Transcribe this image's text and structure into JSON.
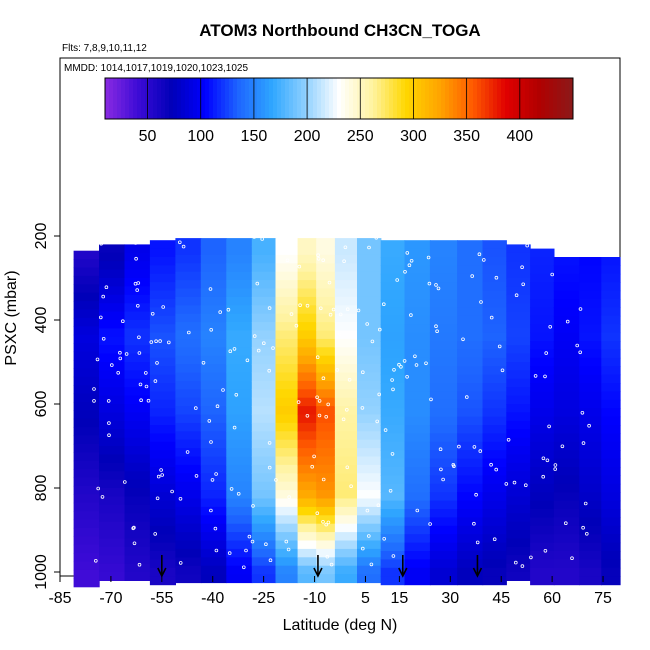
{
  "chart_data": {
    "type": "heatmap",
    "title": "ATOM3 Northbound CH3CN_TOGA",
    "flights_label": "Flts: 7,8,9,10,11,12",
    "dates_label": "MMDD: 1014,1017,1019,1020,1023,1025",
    "xlabel": "Latitude (deg N)",
    "ylabel": "PSXC (mbar)",
    "x_ticks": [
      "-85",
      "-70",
      "-55",
      "-40",
      "-25",
      "-10",
      "5",
      "15",
      "30",
      "45",
      "60",
      "75"
    ],
    "x_tick_values": [
      -85,
      -70,
      -55,
      -40,
      -25,
      -10,
      5,
      15,
      30,
      45,
      60,
      75
    ],
    "y_ticks": [
      "200",
      "400",
      "600",
      "800",
      "1000"
    ],
    "y_tick_values": [
      200,
      400,
      600,
      800,
      1000
    ],
    "xlim": [
      -85,
      80
    ],
    "ylim": [
      1000,
      0
    ],
    "colorbar": {
      "ticks": [
        "50",
        "100",
        "150",
        "200",
        "250",
        "300",
        "350",
        "400"
      ],
      "tick_values": [
        50,
        100,
        150,
        200,
        250,
        300,
        350,
        400
      ],
      "range": [
        10,
        450
      ],
      "colors": [
        "#8a2be2",
        "#3c0bd6",
        "#0000b8",
        "#0000ff",
        "#1e66ff",
        "#2fa6ff",
        "#8fd0ff",
        "#ffffff",
        "#fff3a0",
        "#ffd700",
        "#ffa500",
        "#ff5a00",
        "#e00000",
        "#b00000",
        "#8b1a1a"
      ]
    },
    "sounding_markers_lat": [
      -55,
      -9,
      16,
      38
    ],
    "profiles": [
      {
        "lat": -77,
        "top": 215,
        "values": [
          {
            "p": 220,
            "v": 55
          },
          {
            "p": 420,
            "v": 90
          },
          {
            "p": 600,
            "v": 75
          },
          {
            "p": 800,
            "v": 55
          },
          {
            "p": 980,
            "v": 40
          }
        ]
      },
      {
        "lat": -70,
        "top": 200,
        "values": [
          {
            "p": 220,
            "v": 70
          },
          {
            "p": 420,
            "v": 110
          },
          {
            "p": 600,
            "v": 90
          },
          {
            "p": 800,
            "v": 60
          },
          {
            "p": 980,
            "v": 45
          }
        ]
      },
      {
        "lat": -62,
        "top": 200,
        "values": [
          {
            "p": 220,
            "v": 95
          },
          {
            "p": 420,
            "v": 120
          },
          {
            "p": 600,
            "v": 100
          },
          {
            "p": 800,
            "v": 70
          },
          {
            "p": 980,
            "v": 55
          }
        ]
      },
      {
        "lat": -55,
        "top": 190,
        "values": [
          {
            "p": 220,
            "v": 110
          },
          {
            "p": 420,
            "v": 130
          },
          {
            "p": 600,
            "v": 115
          },
          {
            "p": 800,
            "v": 85
          },
          {
            "p": 980,
            "v": 60
          }
        ]
      },
      {
        "lat": -47,
        "top": 185,
        "values": [
          {
            "p": 220,
            "v": 120
          },
          {
            "p": 420,
            "v": 140
          },
          {
            "p": 600,
            "v": 125
          },
          {
            "p": 800,
            "v": 95
          },
          {
            "p": 980,
            "v": 65
          }
        ]
      },
      {
        "lat": -40,
        "top": 185,
        "values": [
          {
            "p": 220,
            "v": 135
          },
          {
            "p": 420,
            "v": 150
          },
          {
            "p": 600,
            "v": 135
          },
          {
            "p": 800,
            "v": 115
          },
          {
            "p": 980,
            "v": 75
          }
        ]
      },
      {
        "lat": -32,
        "top": 185,
        "values": [
          {
            "p": 220,
            "v": 150
          },
          {
            "p": 420,
            "v": 170
          },
          {
            "p": 600,
            "v": 165
          },
          {
            "p": 800,
            "v": 150
          },
          {
            "p": 980,
            "v": 100
          }
        ]
      },
      {
        "lat": -25,
        "top": 185,
        "values": [
          {
            "p": 220,
            "v": 175
          },
          {
            "p": 420,
            "v": 200
          },
          {
            "p": 600,
            "v": 210
          },
          {
            "p": 800,
            "v": 190
          },
          {
            "p": 980,
            "v": 120
          }
        ]
      },
      {
        "lat": -18,
        "top": 185,
        "values": [
          {
            "p": 220,
            "v": 230
          },
          {
            "p": 420,
            "v": 270
          },
          {
            "p": 600,
            "v": 300
          },
          {
            "p": 800,
            "v": 240
          },
          {
            "p": 980,
            "v": 150
          }
        ]
      },
      {
        "lat": -12,
        "top": 185,
        "values": [
          {
            "p": 220,
            "v": 250
          },
          {
            "p": 420,
            "v": 300
          },
          {
            "p": 600,
            "v": 380
          },
          {
            "p": 800,
            "v": 320
          },
          {
            "p": 980,
            "v": 180
          }
        ]
      },
      {
        "lat": -7,
        "top": 185,
        "values": [
          {
            "p": 220,
            "v": 240
          },
          {
            "p": 420,
            "v": 270
          },
          {
            "p": 600,
            "v": 360
          },
          {
            "p": 800,
            "v": 330
          },
          {
            "p": 980,
            "v": 190
          }
        ]
      },
      {
        "lat": -1,
        "top": 185,
        "values": [
          {
            "p": 220,
            "v": 215
          },
          {
            "p": 420,
            "v": 230
          },
          {
            "p": 600,
            "v": 260
          },
          {
            "p": 800,
            "v": 270
          },
          {
            "p": 980,
            "v": 170
          }
        ]
      },
      {
        "lat": 6,
        "top": 185,
        "values": [
          {
            "p": 220,
            "v": 190
          },
          {
            "p": 420,
            "v": 190
          },
          {
            "p": 600,
            "v": 200
          },
          {
            "p": 800,
            "v": 230
          },
          {
            "p": 980,
            "v": 140
          }
        ]
      },
      {
        "lat": 13,
        "top": 190,
        "values": [
          {
            "p": 220,
            "v": 170
          },
          {
            "p": 420,
            "v": 165
          },
          {
            "p": 600,
            "v": 170
          },
          {
            "p": 800,
            "v": 180
          },
          {
            "p": 980,
            "v": 120
          }
        ]
      },
      {
        "lat": 20,
        "top": 190,
        "values": [
          {
            "p": 220,
            "v": 160
          },
          {
            "p": 420,
            "v": 155
          },
          {
            "p": 600,
            "v": 155
          },
          {
            "p": 800,
            "v": 140
          },
          {
            "p": 980,
            "v": 100
          }
        ]
      },
      {
        "lat": 28,
        "top": 190,
        "values": [
          {
            "p": 220,
            "v": 150
          },
          {
            "p": 420,
            "v": 145
          },
          {
            "p": 600,
            "v": 140
          },
          {
            "p": 800,
            "v": 120
          },
          {
            "p": 980,
            "v": 85
          }
        ]
      },
      {
        "lat": 36,
        "top": 190,
        "values": [
          {
            "p": 220,
            "v": 140
          },
          {
            "p": 420,
            "v": 140
          },
          {
            "p": 600,
            "v": 130
          },
          {
            "p": 800,
            "v": 105
          },
          {
            "p": 980,
            "v": 75
          }
        ]
      },
      {
        "lat": 43,
        "top": 190,
        "values": [
          {
            "p": 220,
            "v": 130
          },
          {
            "p": 420,
            "v": 135
          },
          {
            "p": 600,
            "v": 120
          },
          {
            "p": 800,
            "v": 95
          },
          {
            "p": 980,
            "v": 70
          }
        ]
      },
      {
        "lat": 50,
        "top": 200,
        "values": [
          {
            "p": 220,
            "v": 120
          },
          {
            "p": 420,
            "v": 125
          },
          {
            "p": 600,
            "v": 110
          },
          {
            "p": 800,
            "v": 85
          },
          {
            "p": 980,
            "v": 65
          }
        ]
      },
      {
        "lat": 57,
        "top": 210,
        "values": [
          {
            "p": 220,
            "v": 115
          },
          {
            "p": 420,
            "v": 110
          },
          {
            "p": 600,
            "v": 95
          },
          {
            "p": 800,
            "v": 75
          },
          {
            "p": 980,
            "v": 55
          }
        ]
      },
      {
        "lat": 64,
        "top": 230,
        "values": [
          {
            "p": 220,
            "v": 110
          },
          {
            "p": 420,
            "v": 100
          },
          {
            "p": 600,
            "v": 90
          },
          {
            "p": 800,
            "v": 70
          },
          {
            "p": 980,
            "v": 55
          }
        ]
      },
      {
        "lat": 72,
        "top": 230,
        "values": [
          {
            "p": 220,
            "v": 105
          },
          {
            "p": 420,
            "v": 110
          },
          {
            "p": 600,
            "v": 95
          },
          {
            "p": 800,
            "v": 80
          },
          {
            "p": 980,
            "v": 60
          }
        ]
      },
      {
        "lat": 77,
        "top": 230,
        "values": [
          {
            "p": 220,
            "v": 110
          },
          {
            "p": 420,
            "v": 120
          },
          {
            "p": 600,
            "v": 105
          },
          {
            "p": 800,
            "v": 90
          },
          {
            "p": 980,
            "v": 70
          }
        ]
      }
    ]
  }
}
